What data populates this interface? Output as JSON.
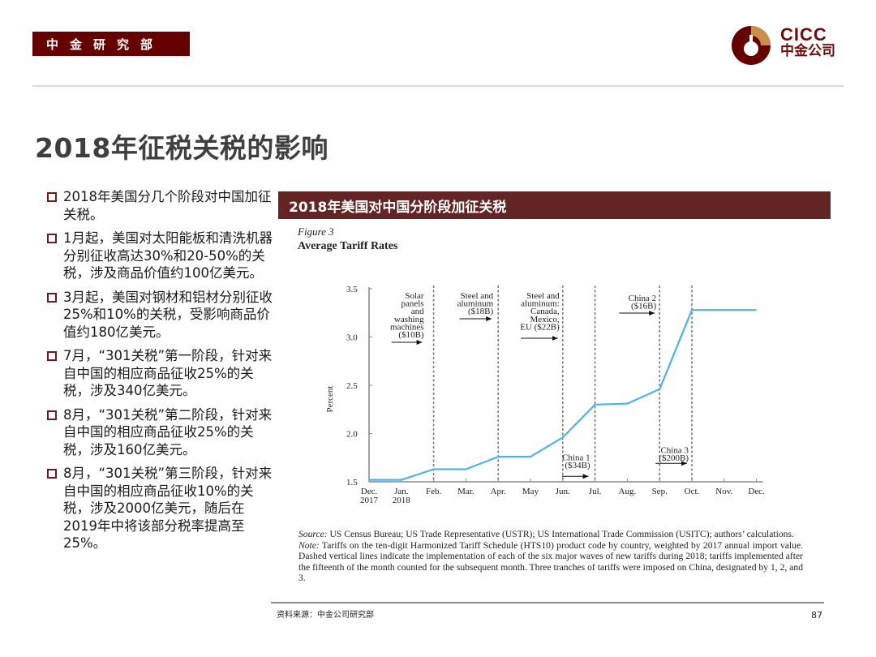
{
  "header": {
    "department_tag": "中金研究部",
    "logo": {
      "en": "CICC",
      "cn": "中金公司",
      "icon": "cicc-logo-icon",
      "colors": {
        "primary": "#640000",
        "accent": "#c8904a"
      }
    }
  },
  "page_title": "2018年征税关税的影响",
  "bullets": [
    {
      "text": "2018年美国分几个阶段对中国加征关税。"
    },
    {
      "text": "1月起，美国对太阳能板和清洗机器分别征收高达30%和20-50%的关税，涉及商品价值约100亿美元。"
    },
    {
      "text": "3月起，美国对钢材和铝材分别征收25%和10%的关税，受影响商品价值约180亿美元。"
    },
    {
      "text": "7月，“301关税”第一阶段，针对来自中国的相应商品征收25%的关税，涉及340亿美元。"
    },
    {
      "text": "8月，“301关税”第二阶段，针对来自中国的相应商品征收25%的关税，涉及160亿美元。"
    },
    {
      "text": "8月，“301关税”第三阶段，针对来自中国的相应商品征收10%的关税，涉及2000亿美元，随后在2019年中将该部分税率提高至25%。"
    }
  ],
  "chart_panel": {
    "banner_title": "2018年美国对中国分阶段加征关税",
    "figure_label": "Figure 3",
    "figure_title": "Average Tariff Rates",
    "source_label": "Source:",
    "source_text": "US Census Bureau; US Trade Representative (USTR); US International Trade Commission (USITC); authors’ calculations.",
    "note_label": "Note:",
    "note_text": "Tariffs on the ten-digit Harmonized Tariff Schedule (HTS10) product code by country, weighted by 2017 annual import value. Dashed vertical lines indicate the implementation of each of the six major waves of new tariffs during 2018; tariffs implemented after the fifteenth of the month counted for the subsequent month. Three tranches of tariffs were imposed on China, designated by 1, 2, and 3."
  },
  "chart_data": {
    "type": "line",
    "title": "Average Tariff Rates",
    "subtitle": "Figure 3",
    "xlabel": "",
    "ylabel": "Percent",
    "ylim": [
      1.5,
      3.5
    ],
    "yticks": [
      "1.5",
      "2.0",
      "2.5",
      "3.0",
      "3.5"
    ],
    "grid": false,
    "legend": null,
    "categories": [
      "Dec. 2017",
      "Jan. 2018",
      "Feb.",
      "Mar.",
      "Apr.",
      "May",
      "Jun.",
      "Jul.",
      "Aug.",
      "Sep.",
      "Oct.",
      "Nov.",
      "Dec."
    ],
    "series": [
      {
        "name": "Average tariff rate",
        "color": "#4db3e6",
        "values": [
          1.52,
          1.52,
          1.63,
          1.63,
          1.76,
          1.76,
          1.96,
          2.3,
          2.31,
          2.46,
          3.28,
          3.28,
          3.28
        ]
      }
    ],
    "vertical_lines": [
      "Feb.",
      "Apr.",
      "Jun.",
      "Jul.",
      "Sep.",
      "Oct."
    ],
    "annotations": [
      {
        "text": "Solar panels and washing machines ($10B)",
        "at": "Feb."
      },
      {
        "text": "Steel and aluminum ($18B)",
        "at": "Apr."
      },
      {
        "text": "Steel and aluminum: Canada, Mexico, EU ($22B)",
        "at": "Jun."
      },
      {
        "text": "China 1 ($34B)",
        "at": "Jul."
      },
      {
        "text": "China 2 ($16B)",
        "at": "Sep."
      },
      {
        "text": "China 3 ($200B)",
        "at": "Oct."
      }
    ]
  },
  "footer": {
    "source": "资料来源：中金公司研究部",
    "page_number": "87"
  }
}
